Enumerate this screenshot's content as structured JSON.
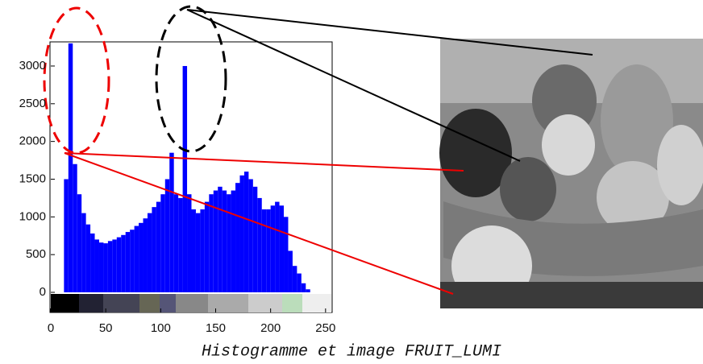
{
  "chart_data": {
    "type": "histogram",
    "caption": "Histogramme et image FRUIT_LUMI",
    "bins": [
      0,
      4,
      8,
      12,
      16,
      20,
      24,
      28,
      32,
      36,
      40,
      44,
      48,
      52,
      56,
      60,
      64,
      68,
      72,
      76,
      80,
      84,
      88,
      92,
      96,
      100,
      104,
      108,
      112,
      116,
      120,
      124,
      128,
      132,
      136,
      140,
      144,
      148,
      152,
      156,
      160,
      164,
      168,
      172,
      176,
      180,
      184,
      188,
      192,
      196,
      200,
      204,
      208,
      212,
      216,
      220,
      224,
      228,
      232,
      236,
      240,
      244,
      248,
      252,
      256
    ],
    "values": [
      0,
      0,
      0,
      1500,
      3300,
      1700,
      1300,
      1050,
      900,
      780,
      700,
      660,
      650,
      680,
      700,
      730,
      760,
      800,
      830,
      880,
      920,
      980,
      1050,
      1130,
      1200,
      1300,
      1500,
      1850,
      1300,
      1250,
      3000,
      1300,
      1100,
      1050,
      1100,
      1200,
      1300,
      1350,
      1400,
      1350,
      1300,
      1350,
      1450,
      1550,
      1600,
      1500,
      1400,
      1250,
      1100,
      1100,
      1150,
      1200,
      1150,
      1000,
      550,
      350,
      250,
      120,
      40,
      0,
      0,
      0,
      0,
      0
    ],
    "color": "#0000ff",
    "xlim": [
      0,
      256
    ],
    "xticks": [
      0,
      50,
      100,
      150,
      200,
      250
    ],
    "ylim": [
      0,
      3320
    ],
    "yticks": [
      0,
      500,
      1000,
      1500,
      2000,
      2500,
      3000
    ]
  }
}
